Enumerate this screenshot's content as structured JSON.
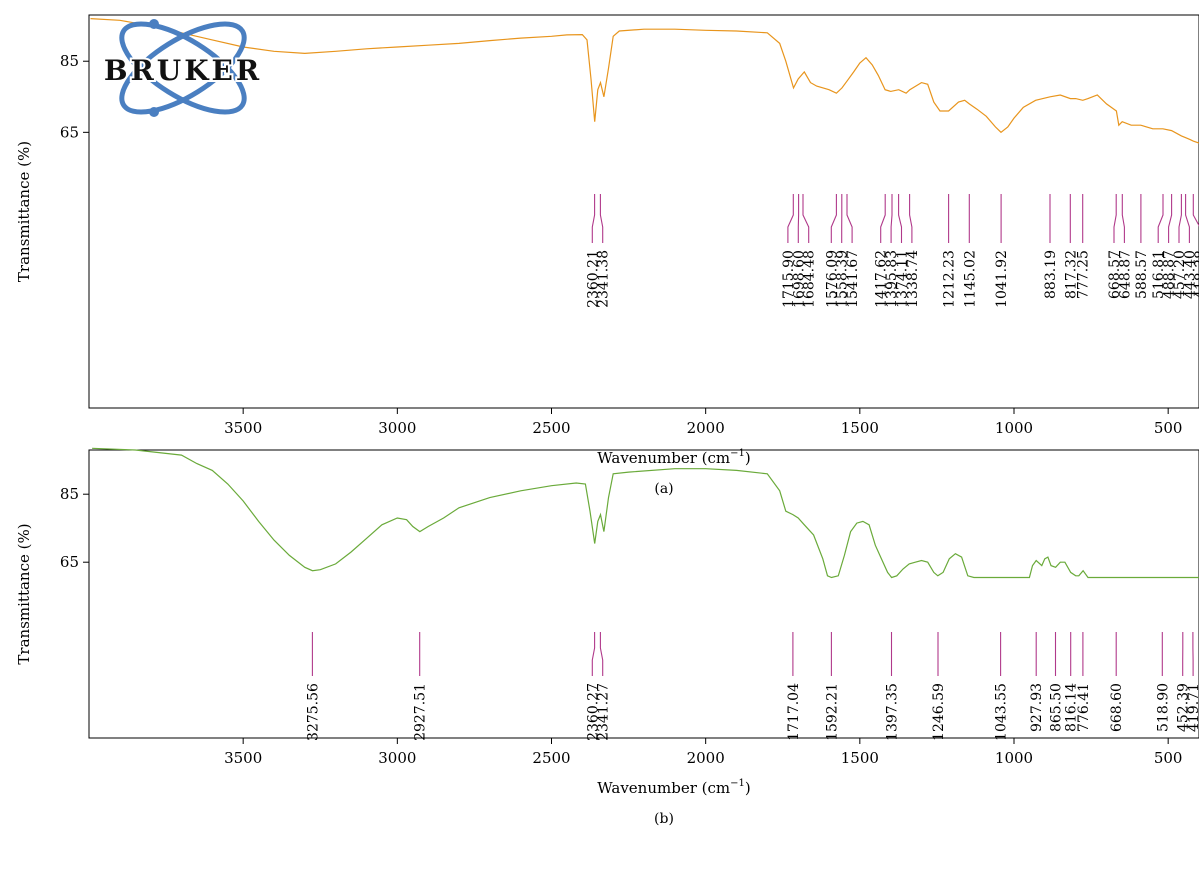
{
  "chart_data": [
    {
      "panel_label": "(a)",
      "type": "line",
      "xlabel": "Wavenumber (cm",
      "xlabel_sup": "−1",
      "xlabel_close": ")",
      "ylabel": "Transmittance (%)",
      "xlim": [
        4000,
        400
      ],
      "ylim": [
        53,
        98
      ],
      "x_ticks": [
        3500,
        3000,
        2500,
        2000,
        1500,
        1000,
        500
      ],
      "y_ticks": [
        65,
        85
      ],
      "series": [
        {
          "color": "#e8951d",
          "points": [
            [
              3995,
              97
            ],
            [
              3900,
              96.5
            ],
            [
              3800,
              95
            ],
            [
              3700,
              93
            ],
            [
              3600,
              91
            ],
            [
              3500,
              89
            ],
            [
              3400,
              87.8
            ],
            [
              3300,
              87.2
            ],
            [
              3200,
              87.8
            ],
            [
              3100,
              88.5
            ],
            [
              3000,
              89
            ],
            [
              2900,
              89.5
            ],
            [
              2800,
              90
            ],
            [
              2700,
              90.8
            ],
            [
              2600,
              91.5
            ],
            [
              2500,
              92
            ],
            [
              2450,
              92.4
            ],
            [
              2400,
              92.5
            ],
            [
              2385,
              91
            ],
            [
              2372,
              80
            ],
            [
              2360,
              68
            ],
            [
              2350,
              77
            ],
            [
              2341,
              79
            ],
            [
              2330,
              75
            ],
            [
              2315,
              83
            ],
            [
              2300,
              92
            ],
            [
              2280,
              93.5
            ],
            [
              2200,
              94
            ],
            [
              2100,
              94
            ],
            [
              2000,
              93.7
            ],
            [
              1900,
              93.5
            ],
            [
              1800,
              93
            ],
            [
              1760,
              90
            ],
            [
              1740,
              85
            ],
            [
              1715,
              77.5
            ],
            [
              1700,
              80
            ],
            [
              1680,
              82
            ],
            [
              1660,
              79
            ],
            [
              1640,
              78
            ],
            [
              1600,
              77
            ],
            [
              1576,
              76
            ],
            [
              1558,
              77.5
            ],
            [
              1541,
              79.5
            ],
            [
              1520,
              82
            ],
            [
              1500,
              84.5
            ],
            [
              1480,
              86
            ],
            [
              1460,
              84
            ],
            [
              1440,
              81
            ],
            [
              1418,
              77
            ],
            [
              1400,
              76.5
            ],
            [
              1374,
              77
            ],
            [
              1350,
              76
            ],
            [
              1338,
              77
            ],
            [
              1300,
              79
            ],
            [
              1280,
              78.5
            ],
            [
              1260,
              73.5
            ],
            [
              1240,
              71
            ],
            [
              1212,
              71
            ],
            [
              1180,
              73.5
            ],
            [
              1160,
              74
            ],
            [
              1145,
              73
            ],
            [
              1120,
              71.5
            ],
            [
              1090,
              69.5
            ],
            [
              1060,
              66.5
            ],
            [
              1042,
              65
            ],
            [
              1020,
              66.5
            ],
            [
              1000,
              69
            ],
            [
              970,
              72
            ],
            [
              930,
              74
            ],
            [
              883,
              75
            ],
            [
              850,
              75.5
            ],
            [
              817,
              74.5
            ],
            [
              800,
              74.5
            ],
            [
              777,
              74
            ],
            [
              760,
              74.5
            ],
            [
              730,
              75.5
            ],
            [
              700,
              73
            ],
            [
              668,
              71
            ],
            [
              660,
              67
            ],
            [
              649,
              68
            ],
            [
              620,
              67
            ],
            [
              589,
              67
            ],
            [
              550,
              66
            ],
            [
              517,
              66
            ],
            [
              489,
              65.5
            ],
            [
              457,
              64
            ],
            [
              443,
              63.5
            ],
            [
              430,
              63
            ],
            [
              418,
              62.5
            ],
            [
              400,
              62
            ]
          ]
        }
      ],
      "peak_labels": [
        "2360.21",
        "2341.38",
        "1715.90",
        "1698.60",
        "1684.48",
        "1576.09",
        "1558.39",
        "1541.67",
        "1417.62",
        "1395.83",
        "1374.11",
        "1338.74",
        "1212.23",
        "1145.02",
        "1041.92",
        "883.19",
        "817.32",
        "777.25",
        "668.57",
        "648.87",
        "588.57",
        "516.81",
        "488.87",
        "457.20",
        "443.40",
        "418.38"
      ]
    },
    {
      "panel_label": "(b)",
      "type": "line",
      "xlabel": "Wavenumber (cm",
      "xlabel_sup": "−1",
      "xlabel_close": ")",
      "ylabel": "Transmittance (%)",
      "xlim": [
        4000,
        400
      ],
      "ylim": [
        48,
        98
      ],
      "x_ticks": [
        3500,
        3000,
        2500,
        2000,
        1500,
        1000,
        500
      ],
      "y_ticks": [
        65,
        85
      ],
      "series": [
        {
          "color": "#6aaa3a",
          "points": [
            [
              3990,
              98.5
            ],
            [
              3850,
              98
            ],
            [
              3700,
              96.5
            ],
            [
              3650,
              94
            ],
            [
              3600,
              92
            ],
            [
              3550,
              88
            ],
            [
              3500,
              83
            ],
            [
              3450,
              77
            ],
            [
              3400,
              71.5
            ],
            [
              3350,
              67
            ],
            [
              3300,
              63.5
            ],
            [
              3275,
              62.5
            ],
            [
              3250,
              62.8
            ],
            [
              3200,
              64.5
            ],
            [
              3150,
              68
            ],
            [
              3100,
              72
            ],
            [
              3050,
              76
            ],
            [
              3000,
              78
            ],
            [
              2970,
              77.5
            ],
            [
              2950,
              75.5
            ],
            [
              2927,
              74
            ],
            [
              2900,
              75.5
            ],
            [
              2850,
              78
            ],
            [
              2800,
              81
            ],
            [
              2700,
              84
            ],
            [
              2600,
              86
            ],
            [
              2500,
              87.5
            ],
            [
              2420,
              88.3
            ],
            [
              2390,
              88
            ],
            [
              2375,
              80
            ],
            [
              2360,
              70.5
            ],
            [
              2350,
              77
            ],
            [
              2341,
              79
            ],
            [
              2330,
              74
            ],
            [
              2315,
              84
            ],
            [
              2300,
              91
            ],
            [
              2250,
              91.5
            ],
            [
              2100,
              92.5
            ],
            [
              2000,
              92.5
            ],
            [
              1900,
              92
            ],
            [
              1800,
              91
            ],
            [
              1760,
              86
            ],
            [
              1740,
              80
            ],
            [
              1717,
              79
            ],
            [
              1700,
              78
            ],
            [
              1680,
              76
            ],
            [
              1650,
              73
            ],
            [
              1620,
              66
            ],
            [
              1605,
              61
            ],
            [
              1592,
              60.5
            ],
            [
              1570,
              61
            ],
            [
              1550,
              67
            ],
            [
              1530,
              74
            ],
            [
              1510,
              76.5
            ],
            [
              1490,
              77
            ],
            [
              1470,
              76
            ],
            [
              1450,
              70
            ],
            [
              1430,
              66
            ],
            [
              1410,
              62
            ],
            [
              1397,
              60.5
            ],
            [
              1380,
              61
            ],
            [
              1360,
              63
            ],
            [
              1340,
              64.5
            ],
            [
              1320,
              65
            ],
            [
              1300,
              65.5
            ],
            [
              1280,
              65
            ],
            [
              1260,
              62
            ],
            [
              1247,
              61
            ],
            [
              1230,
              62
            ],
            [
              1210,
              66
            ],
            [
              1190,
              67.5
            ],
            [
              1170,
              66.5
            ],
            [
              1150,
              61
            ],
            [
              1130,
              60.5
            ],
            [
              1100,
              60.5
            ],
            [
              1044,
              60.5
            ],
            [
              1000,
              60.5
            ],
            [
              950,
              60.5
            ],
            [
              940,
              64
            ],
            [
              928,
              65.5
            ],
            [
              910,
              64
            ],
            [
              900,
              66
            ],
            [
              890,
              66.5
            ],
            [
              880,
              64
            ],
            [
              865,
              63.5
            ],
            [
              850,
              65
            ],
            [
              835,
              65
            ],
            [
              816,
              62
            ],
            [
              800,
              61
            ],
            [
              790,
              61
            ],
            [
              776,
              62.5
            ],
            [
              760,
              60.5
            ],
            [
              700,
              60.5
            ],
            [
              669,
              60.5
            ],
            [
              600,
              60.5
            ],
            [
              519,
              60.5
            ],
            [
              452,
              60.5
            ],
            [
              420,
              60.5
            ],
            [
              400,
              60.5
            ]
          ]
        }
      ],
      "peak_labels": [
        "3275.56",
        "2927.51",
        "2360.27",
        "2341.27",
        "1717.04",
        "1592.21",
        "1397.35",
        "1246.59",
        "1043.55",
        "927.93",
        "865.50",
        "816.14",
        "776.41",
        "668.60",
        "518.90",
        "452.39",
        "419.71"
      ]
    }
  ],
  "logo": {
    "text": "BRUKER",
    "color": "#4a7fc1",
    "icon": "atom-orbit-icon"
  },
  "colors": {
    "peak_marker": "#b0398a"
  }
}
